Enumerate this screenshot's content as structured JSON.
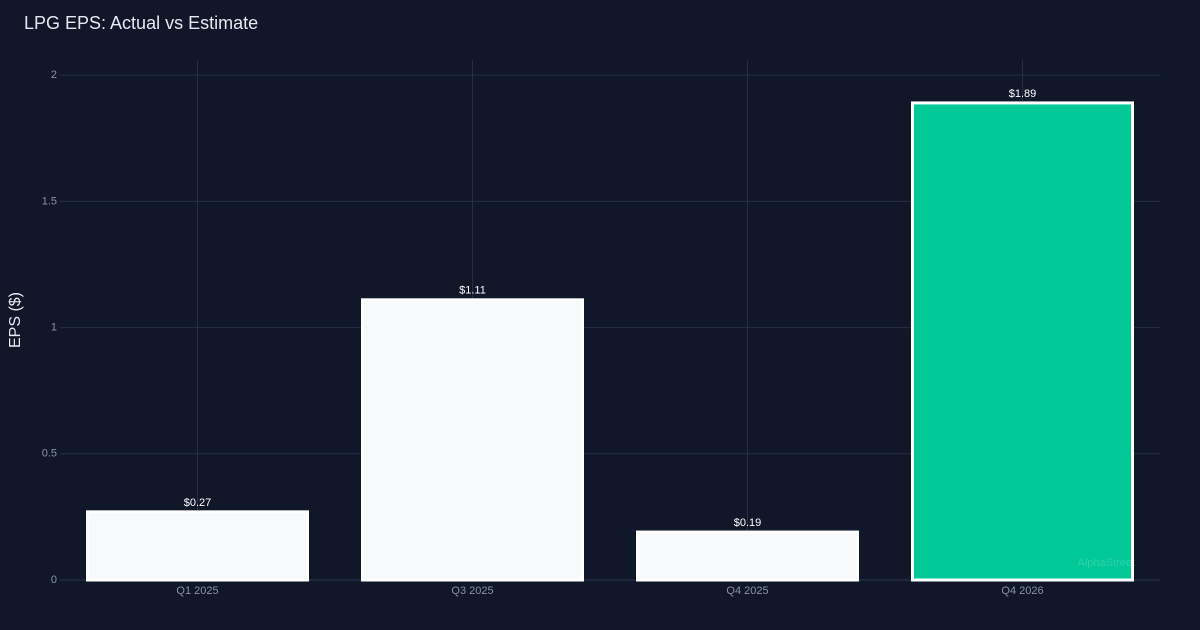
{
  "chart_data": {
    "type": "bar",
    "title": "LPG EPS: Actual vs Estimate",
    "y_label": "EPS ($)",
    "categories": [
      "Q1 2025",
      "Q3 2025",
      "Q4 2025",
      "Q4 2026"
    ],
    "values": [
      0.27,
      1.11,
      0.19,
      1.89
    ],
    "value_labels": [
      "$0.27",
      "$1.11",
      "$0.19",
      "$1.89"
    ],
    "colors": [
      "#f8f9fb",
      "#f8f9fb",
      "#f8f9fb",
      "#00c896"
    ],
    "outline": "#ffffff",
    "ylim": [
      0,
      2.06
    ],
    "yticks": [
      0,
      0.5,
      1,
      1.5,
      2
    ],
    "grid": true,
    "watermark": "AlphaStreet"
  }
}
